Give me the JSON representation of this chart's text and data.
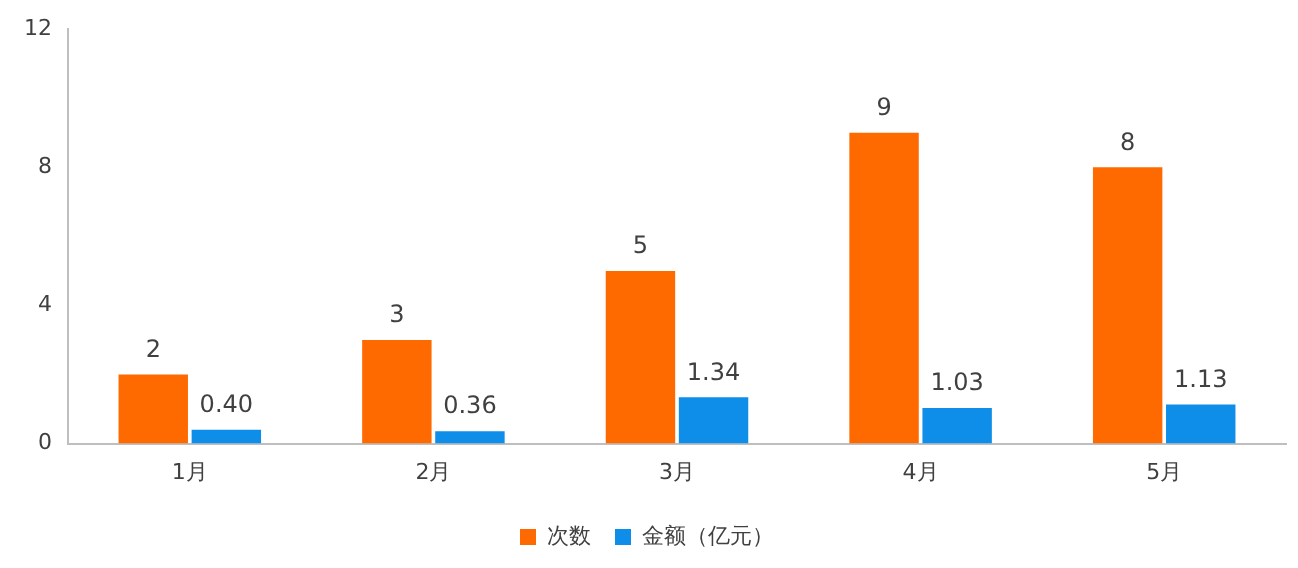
{
  "chart_data": {
    "type": "bar",
    "categories": [
      "1月",
      "2月",
      "3月",
      "4月",
      "5月"
    ],
    "series": [
      {
        "name": "次数",
        "color": "#ff6a00",
        "values": [
          2,
          3,
          5,
          9,
          8
        ],
        "value_labels": [
          "2",
          "3",
          "5",
          "9",
          "8"
        ]
      },
      {
        "name": "金额（亿元）",
        "color": "#0e8ee9",
        "values": [
          0.4,
          0.36,
          1.34,
          1.03,
          1.13
        ],
        "value_labels": [
          "0.40",
          "0.36",
          "1.34",
          "1.03",
          "1.13"
        ]
      }
    ],
    "ylim": [
      0,
      12
    ],
    "yticks": [
      0,
      4,
      8,
      12
    ],
    "grid": false,
    "legend": "bottom"
  }
}
